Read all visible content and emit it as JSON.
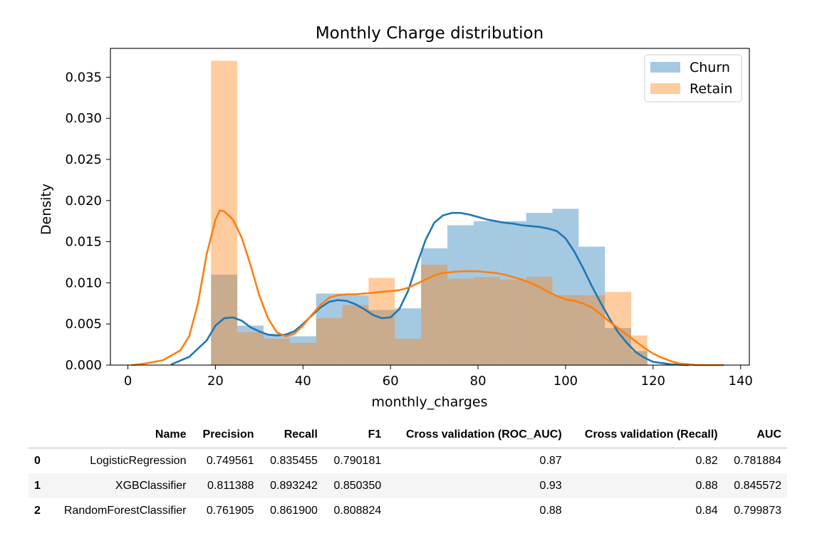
{
  "chart_data": {
    "type": "histogram-kde",
    "title": "Monthly Charge distribution",
    "xlabel": "monthly_charges",
    "ylabel": "Density",
    "xlim": [
      -4,
      142
    ],
    "ylim": [
      0,
      0.0385
    ],
    "xticks": [
      "0",
      "20",
      "40",
      "60",
      "80",
      "100",
      "120",
      "140"
    ],
    "xtick_values": [
      0,
      20,
      40,
      60,
      80,
      100,
      120,
      140
    ],
    "yticks": [
      "0.000",
      "0.005",
      "0.010",
      "0.015",
      "0.020",
      "0.025",
      "0.030",
      "0.035"
    ],
    "ytick_values": [
      0,
      0.005,
      0.01,
      0.015,
      0.02,
      0.025,
      0.03,
      0.035
    ],
    "legend_position": "top-right",
    "series": [
      {
        "name": "Churn",
        "color": "#1f77b4",
        "bins": [
          {
            "x0": 19,
            "x1": 25,
            "y": 0.011
          },
          {
            "x0": 25,
            "x1": 31,
            "y": 0.0048
          },
          {
            "x0": 31,
            "x1": 37,
            "y": 0.0038
          },
          {
            "x0": 37,
            "x1": 43,
            "y": 0.0035
          },
          {
            "x0": 43,
            "x1": 49,
            "y": 0.0087
          },
          {
            "x0": 49,
            "x1": 55,
            "y": 0.0085
          },
          {
            "x0": 55,
            "x1": 61,
            "y": 0.0067
          },
          {
            "x0": 61,
            "x1": 67,
            "y": 0.0069
          },
          {
            "x0": 67,
            "x1": 73,
            "y": 0.0142
          },
          {
            "x0": 73,
            "x1": 79,
            "y": 0.017
          },
          {
            "x0": 79,
            "x1": 85,
            "y": 0.0175
          },
          {
            "x0": 85,
            "x1": 91,
            "y": 0.0175
          },
          {
            "x0": 91,
            "x1": 97,
            "y": 0.0185
          },
          {
            "x0": 97,
            "x1": 103,
            "y": 0.019
          },
          {
            "x0": 103,
            "x1": 109,
            "y": 0.0144
          },
          {
            "x0": 109,
            "x1": 115,
            "y": 0.0045
          },
          {
            "x0": 115,
            "x1": 118.7,
            "y": 0.0017
          }
        ],
        "kde_x": [
          10,
          14,
          18,
          20,
          22,
          24,
          26,
          28,
          30,
          32,
          34,
          36,
          38,
          40,
          42,
          44,
          46,
          48,
          50,
          52,
          54,
          56,
          58,
          60,
          62,
          64,
          66,
          68,
          70,
          72,
          74,
          76,
          78,
          80,
          82,
          84,
          86,
          88,
          90,
          92,
          94,
          96,
          98,
          100,
          102,
          104,
          106,
          108,
          110,
          112,
          114,
          116,
          118,
          120,
          124,
          128
        ],
        "kde_y": [
          0.0001,
          0.001,
          0.003,
          0.0048,
          0.0057,
          0.0058,
          0.0054,
          0.0046,
          0.0041,
          0.0037,
          0.0036,
          0.0037,
          0.0041,
          0.005,
          0.006,
          0.007,
          0.0077,
          0.0079,
          0.0078,
          0.0074,
          0.0068,
          0.0061,
          0.0057,
          0.0058,
          0.0068,
          0.009,
          0.0122,
          0.0152,
          0.0173,
          0.0182,
          0.0185,
          0.0185,
          0.0183,
          0.018,
          0.0177,
          0.0175,
          0.0173,
          0.0172,
          0.017,
          0.0169,
          0.0168,
          0.0166,
          0.0163,
          0.0154,
          0.0138,
          0.0118,
          0.0096,
          0.0076,
          0.0057,
          0.004,
          0.0027,
          0.0016,
          0.0009,
          0.0004,
          0.0001,
          0.0
        ]
      },
      {
        "name": "Retain",
        "color": "#ff7f0e",
        "bins": [
          {
            "x0": 19,
            "x1": 25,
            "y": 0.037
          },
          {
            "x0": 25,
            "x1": 31,
            "y": 0.004
          },
          {
            "x0": 31,
            "x1": 37,
            "y": 0.0032
          },
          {
            "x0": 37,
            "x1": 43,
            "y": 0.0027
          },
          {
            "x0": 43,
            "x1": 49,
            "y": 0.0057
          },
          {
            "x0": 49,
            "x1": 55,
            "y": 0.0073
          },
          {
            "x0": 55,
            "x1": 61,
            "y": 0.0106
          },
          {
            "x0": 61,
            "x1": 67,
            "y": 0.0032
          },
          {
            "x0": 67,
            "x1": 73,
            "y": 0.0122
          },
          {
            "x0": 73,
            "x1": 79,
            "y": 0.0105
          },
          {
            "x0": 79,
            "x1": 85,
            "y": 0.0107
          },
          {
            "x0": 85,
            "x1": 91,
            "y": 0.0104
          },
          {
            "x0": 91,
            "x1": 97,
            "y": 0.0107
          },
          {
            "x0": 97,
            "x1": 103,
            "y": 0.0085
          },
          {
            "x0": 103,
            "x1": 109,
            "y": 0.0085
          },
          {
            "x0": 109,
            "x1": 115,
            "y": 0.0089
          },
          {
            "x0": 115,
            "x1": 118.7,
            "y": 0.0036
          }
        ],
        "kde_x": [
          1,
          4,
          8,
          12,
          14,
          16,
          18,
          20,
          21,
          22,
          24,
          26,
          28,
          30,
          32,
          34,
          36,
          38,
          40,
          42,
          44,
          46,
          48,
          50,
          52,
          54,
          56,
          58,
          60,
          62,
          64,
          66,
          68,
          70,
          72,
          74,
          76,
          78,
          80,
          82,
          84,
          86,
          88,
          90,
          92,
          94,
          96,
          98,
          100,
          102,
          104,
          106,
          108,
          110,
          112,
          114,
          116,
          118,
          120,
          122,
          124,
          126,
          128,
          130,
          132,
          136
        ],
        "kde_y": [
          0.0,
          0.0002,
          0.0006,
          0.0018,
          0.0035,
          0.0075,
          0.0135,
          0.0177,
          0.0188,
          0.0187,
          0.0177,
          0.0155,
          0.0122,
          0.0085,
          0.0057,
          0.004,
          0.0035,
          0.0038,
          0.0048,
          0.0061,
          0.0073,
          0.0082,
          0.0085,
          0.0086,
          0.0086,
          0.0087,
          0.0088,
          0.0089,
          0.009,
          0.0091,
          0.0094,
          0.0099,
          0.0104,
          0.0109,
          0.0112,
          0.0113,
          0.0114,
          0.0114,
          0.0114,
          0.0113,
          0.0112,
          0.011,
          0.0107,
          0.0104,
          0.01,
          0.0095,
          0.0089,
          0.0084,
          0.008,
          0.0078,
          0.0075,
          0.007,
          0.0062,
          0.0053,
          0.0045,
          0.0037,
          0.0029,
          0.0021,
          0.0014,
          0.0009,
          0.0005,
          0.0002,
          0.0001,
          0.0,
          0.0,
          0.0
        ]
      }
    ]
  },
  "table": {
    "headers": [
      "Name",
      "Precision",
      "Recall",
      "F1",
      "Cross validation (ROC_AUC)",
      "Cross validation (Recall)",
      "AUC"
    ],
    "rows": [
      {
        "index": "0",
        "cells": [
          "LogisticRegression",
          "0.749561",
          "0.835455",
          "0.790181",
          "0.87",
          "0.82",
          "0.781884"
        ]
      },
      {
        "index": "1",
        "cells": [
          "XGBClassifier",
          "0.811388",
          "0.893242",
          "0.850350",
          "0.93",
          "0.88",
          "0.845572"
        ]
      },
      {
        "index": "2",
        "cells": [
          "RandomForestClassifier",
          "0.761905",
          "0.861900",
          "0.808824",
          "0.88",
          "0.84",
          "0.799873"
        ]
      }
    ]
  }
}
